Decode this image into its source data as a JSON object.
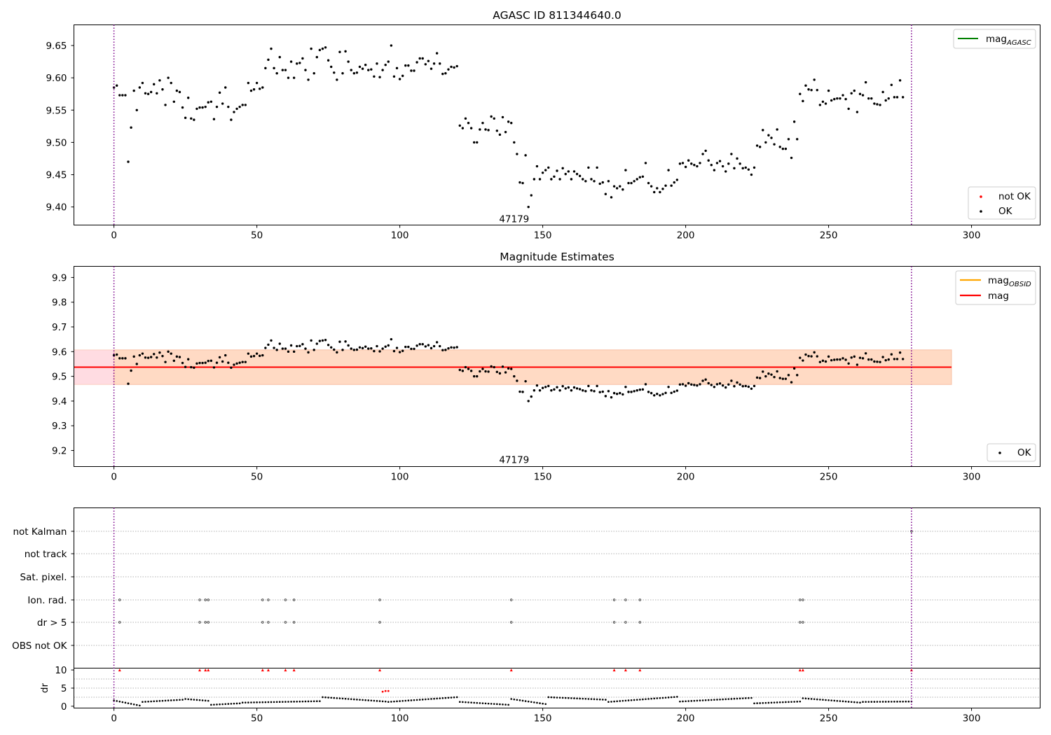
{
  "chart_data": [
    {
      "type": "scatter",
      "title": "AGASC ID 811344640.0",
      "xlabel": "",
      "ylabel": "",
      "xlim": [
        -14,
        324
      ],
      "ylim": [
        9.372,
        9.682
      ],
      "xticks": [
        "0",
        "50",
        "100",
        "150",
        "200",
        "250",
        "300"
      ],
      "yticks": [
        "9.40",
        "9.45",
        "9.50",
        "9.55",
        "9.60",
        "9.65"
      ],
      "annotation": {
        "text": "47179",
        "x": 140,
        "y": 9.382
      },
      "obs_boundaries": [
        0,
        279
      ],
      "legend_upper": [
        {
          "label_main": "mag",
          "label_sub": "AGASC",
          "color": "#008000"
        }
      ],
      "legend_lower": [
        {
          "label": "not OK",
          "color": "#ff0000"
        },
        {
          "label": "OK",
          "color": "#000000"
        }
      ],
      "series": [
        {
          "name": "OK",
          "color": "#000000",
          "x_start": 0,
          "x_step": 1,
          "values": [
            9.585,
            9.588,
            9.573,
            9.573,
            9.573,
            9.47,
            9.523,
            9.58,
            9.55,
            9.585,
            9.592,
            9.576,
            9.575,
            9.578,
            9.59,
            9.576,
            9.596,
            9.582,
            9.558,
            9.6,
            9.592,
            9.563,
            9.58,
            9.578,
            9.554,
            9.538,
            9.569,
            9.537,
            9.535,
            9.552,
            9.554,
            9.554,
            9.555,
            9.562,
            9.563,
            9.536,
            9.555,
            9.577,
            9.56,
            9.585,
            9.555,
            9.535,
            9.547,
            9.552,
            9.555,
            9.558,
            9.558,
            9.592,
            9.58,
            9.582,
            9.592,
            9.583,
            9.585,
            9.615,
            9.628,
            9.645,
            9.615,
            9.607,
            9.632,
            9.612,
            9.612,
            9.6,
            9.625,
            9.6,
            9.622,
            9.623,
            9.63,
            9.612,
            9.597,
            9.645,
            9.607,
            9.632,
            9.643,
            9.645,
            9.647,
            9.627,
            9.617,
            9.608,
            9.597,
            9.64,
            9.607,
            9.641,
            9.625,
            9.612,
            9.607,
            9.608,
            9.617,
            9.614,
            9.62,
            9.612,
            9.613,
            9.602,
            9.622,
            9.601,
            9.612,
            9.62,
            9.625,
            9.65,
            9.602,
            9.615,
            9.598,
            9.603,
            9.619,
            9.619,
            9.611,
            9.611,
            9.624,
            9.63,
            9.63,
            9.621,
            9.626,
            9.614,
            9.622,
            9.638,
            9.622,
            9.606,
            9.607,
            9.613,
            9.617,
            9.616,
            9.618,
            9.526,
            9.522,
            9.537,
            9.53,
            9.522,
            9.5,
            9.5,
            9.52,
            9.53,
            9.52,
            9.519,
            9.54,
            9.537,
            9.518,
            9.512,
            9.539,
            9.516,
            9.532,
            9.53,
            9.5,
            9.482,
            9.438,
            9.437,
            9.48,
            9.4,
            9.418,
            9.443,
            9.463,
            9.443,
            9.453,
            9.457,
            9.461,
            9.443,
            9.447,
            9.456,
            9.443,
            9.46,
            9.451,
            9.455,
            9.443,
            9.455,
            9.451,
            9.448,
            9.443,
            9.44,
            9.461,
            9.443,
            9.44,
            9.461,
            9.436,
            9.438,
            9.42,
            9.44,
            9.415,
            9.432,
            9.429,
            9.432,
            9.427,
            9.457,
            9.437,
            9.437,
            9.44,
            9.443,
            9.446,
            9.447,
            9.468,
            9.437,
            9.432,
            9.423,
            9.429,
            9.423,
            9.428,
            9.433,
            9.457,
            9.433,
            9.438,
            9.442,
            9.467,
            9.468,
            9.462,
            9.472,
            9.467,
            9.465,
            9.463,
            9.468,
            9.482,
            9.487,
            9.472,
            9.465,
            9.457,
            9.468,
            9.471,
            9.463,
            9.455,
            9.467,
            9.482,
            9.46,
            9.475,
            9.467,
            9.46,
            9.461,
            9.458,
            9.45,
            9.461,
            9.495,
            9.493,
            9.519,
            9.5,
            9.511,
            9.507,
            9.497,
            9.52,
            9.493,
            9.49,
            9.49,
            9.505,
            9.476,
            9.532,
            9.505,
            9.575,
            9.564,
            9.588,
            9.582,
            9.581,
            9.597,
            9.581,
            9.558,
            9.563,
            9.56,
            9.58,
            9.565,
            9.567,
            9.568,
            9.568,
            9.573,
            9.567,
            9.552,
            9.576,
            9.58,
            9.547,
            9.575,
            9.573,
            9.593,
            9.568,
            9.568,
            9.56,
            9.559,
            9.558,
            9.578,
            9.565,
            9.568,
            9.589,
            9.57,
            9.57,
            9.596,
            9.57
          ]
        }
      ]
    },
    {
      "type": "scatter",
      "title": "Magnitude Estimates",
      "xlabel": "",
      "ylabel": "",
      "xlim": [
        -14,
        324
      ],
      "ylim": [
        9.135,
        9.945
      ],
      "xticks": [
        "0",
        "50",
        "100",
        "150",
        "200",
        "250",
        "300"
      ],
      "yticks": [
        "9.2",
        "9.3",
        "9.4",
        "9.5",
        "9.6",
        "9.7",
        "9.8",
        "9.9"
      ],
      "annotation": {
        "text": "47179",
        "x": 140,
        "y": 9.163
      },
      "obs_boundaries": [
        0,
        279
      ],
      "bands": [
        {
          "x": [
            -14,
            293
          ],
          "y": [
            9.467,
            9.607
          ],
          "color": "#ffc0cb",
          "opacity": 0.55
        },
        {
          "x": [
            0,
            293
          ],
          "y": [
            9.467,
            9.607
          ],
          "color": "#ffd8b8",
          "opacity": 0.7
        }
      ],
      "hlines": [
        {
          "name": "mag",
          "y": 9.537,
          "x": [
            -14,
            293
          ],
          "color": "#ff0000"
        }
      ],
      "legend_upper": [
        {
          "label_main": "mag",
          "label_sub": "OBSID",
          "color": "#ffa500"
        },
        {
          "label_main": "mag",
          "label_sub": "",
          "color": "#ff0000"
        }
      ],
      "legend_lower": [
        {
          "label": "OK",
          "color": "#000000"
        }
      ],
      "series_ref": "same OK values as AGASC panel"
    },
    {
      "type": "scatter",
      "title": "",
      "xlabel": "",
      "ylabel": "",
      "xlim": [
        -14,
        324
      ],
      "xticks": [
        "0",
        "50",
        "100",
        "150",
        "200",
        "250",
        "300"
      ],
      "obs_boundaries": [
        0,
        279
      ],
      "flag_rows": [
        "not Kalman",
        "not track",
        "Sat. pixel.",
        "Ion. rad.",
        "dr > 5",
        "OBS not OK"
      ],
      "flag_points": {
        "Ion. rad.": [
          2,
          30,
          32,
          33,
          52,
          54,
          60,
          63,
          93,
          139,
          175,
          179,
          184,
          240,
          241
        ],
        "dr > 5": [
          2,
          30,
          32,
          33,
          52,
          54,
          60,
          63,
          93,
          139,
          175,
          179,
          184,
          240,
          241
        ],
        "not Kalman": [
          279
        ]
      }
    },
    {
      "type": "scatter",
      "title": "",
      "xlabel": "",
      "ylabel": "dr",
      "xlim": [
        -14,
        324
      ],
      "ylim": [
        -0.5,
        10.5
      ],
      "xticks": [
        "0",
        "50",
        "100",
        "150",
        "200",
        "250",
        "300"
      ],
      "yticks": [
        "0",
        "5",
        "10"
      ],
      "obs_boundaries": [
        0,
        279
      ],
      "flag_x": [
        2,
        30,
        32,
        33,
        52,
        54,
        60,
        63,
        93,
        139,
        175,
        179,
        184,
        240,
        241,
        279
      ],
      "flag_y": 10,
      "red_points": [
        {
          "x": 94,
          "y": 4.0
        },
        {
          "x": 95,
          "y": 4.2
        },
        {
          "x": 96,
          "y": 4.2
        }
      ],
      "dr_segments": [
        {
          "x_from": 0,
          "x_to": 10,
          "y_from": 1.6,
          "y_to": 0.2
        },
        {
          "x_from": 10,
          "x_to": 25,
          "y_from": 1.2,
          "y_to": 1.8
        },
        {
          "x_from": 25,
          "x_to": 34,
          "y_from": 2.0,
          "y_to": 1.5
        },
        {
          "x_from": 34,
          "x_to": 45,
          "y_from": 0.4,
          "y_to": 0.8
        },
        {
          "x_from": 45,
          "x_to": 73,
          "y_from": 1.0,
          "y_to": 1.4
        },
        {
          "x_from": 73,
          "x_to": 96,
          "y_from": 2.5,
          "y_to": 1.3
        },
        {
          "x_from": 96,
          "x_to": 121,
          "y_from": 1.2,
          "y_to": 2.5
        },
        {
          "x_from": 121,
          "x_to": 139,
          "y_from": 1.2,
          "y_to": 0.4
        },
        {
          "x_from": 139,
          "x_to": 152,
          "y_from": 2.0,
          "y_to": 0.6
        },
        {
          "x_from": 152,
          "x_to": 173,
          "y_from": 2.5,
          "y_to": 1.8
        },
        {
          "x_from": 173,
          "x_to": 198,
          "y_from": 1.2,
          "y_to": 2.6
        },
        {
          "x_from": 198,
          "x_to": 224,
          "y_from": 1.3,
          "y_to": 2.3
        },
        {
          "x_from": 224,
          "x_to": 241,
          "y_from": 0.8,
          "y_to": 1.3
        },
        {
          "x_from": 241,
          "x_to": 262,
          "y_from": 2.2,
          "y_to": 1.0
        },
        {
          "x_from": 262,
          "x_to": 280,
          "y_from": 1.2,
          "y_to": 1.3
        }
      ]
    }
  ]
}
